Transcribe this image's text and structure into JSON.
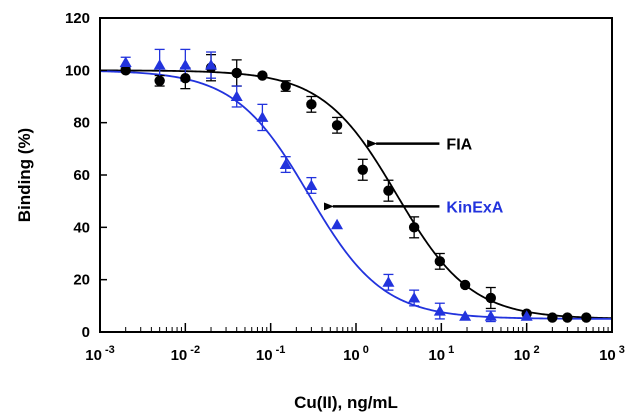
{
  "chart_data": {
    "type": "scatter",
    "title": "",
    "xlabel": "Cu(II), ng/mL",
    "ylabel": "Binding (%)",
    "xscale": "log",
    "xlim": [
      0.001,
      1000
    ],
    "ylim": [
      0,
      120
    ],
    "x_ticks": [
      {
        "base": "10",
        "exp": "-3"
      },
      {
        "base": "10",
        "exp": "-2"
      },
      {
        "base": "10",
        "exp": "-1"
      },
      {
        "base": "10",
        "exp": "0"
      },
      {
        "base": "10",
        "exp": "1"
      },
      {
        "base": "10",
        "exp": "2"
      },
      {
        "base": "10",
        "exp": "3"
      }
    ],
    "y_ticks": [
      "0",
      "20",
      "40",
      "60",
      "80",
      "100",
      "120"
    ],
    "grid": false,
    "series": [
      {
        "name": "FIA",
        "color": "#000000",
        "marker": "circle",
        "x": [
          0.002,
          0.005,
          0.01,
          0.02,
          0.04,
          0.08,
          0.15,
          0.3,
          0.6,
          1.2,
          2.4,
          4.8,
          9.6,
          19,
          38,
          100,
          200,
          300,
          500
        ],
        "y": [
          100,
          96,
          97,
          101,
          99,
          98,
          94,
          87,
          79,
          62,
          54,
          40,
          27,
          18,
          13,
          7,
          5.5,
          5.5,
          5.5
        ],
        "err": [
          0,
          2,
          4,
          5,
          5,
          0,
          2,
          3,
          3,
          4,
          4,
          4,
          3,
          0,
          4,
          0,
          0,
          0,
          0
        ],
        "fit": {
          "top": 100,
          "bottom": 5,
          "ec50": 3.0,
          "hill": 1.0
        }
      },
      {
        "name": "KinExA",
        "color": "#2233dd",
        "marker": "triangle",
        "x": [
          0.002,
          0.005,
          0.01,
          0.02,
          0.04,
          0.08,
          0.15,
          0.3,
          0.6,
          2.4,
          4.8,
          9.6,
          19,
          38,
          100
        ],
        "y": [
          103,
          102,
          102,
          102,
          90,
          82,
          64,
          56,
          41,
          19,
          13,
          8,
          6,
          6,
          6
        ],
        "err": [
          2,
          6,
          6,
          5,
          4,
          5,
          3,
          3,
          0,
          3,
          3,
          3,
          0,
          2,
          0
        ],
        "fit": {
          "top": 100,
          "bottom": 5,
          "ec50": 0.28,
          "hill": 1.0
        }
      }
    ],
    "annotations": [
      {
        "text": "FIA",
        "color": "#000000",
        "arrow_from_x": 9.5,
        "arrow_to_x": 1.35,
        "y": 72
      },
      {
        "text": "KinExA",
        "color": "#2233dd",
        "arrow_from_x": 9.5,
        "arrow_to_x": 0.42,
        "y": 48
      }
    ]
  }
}
